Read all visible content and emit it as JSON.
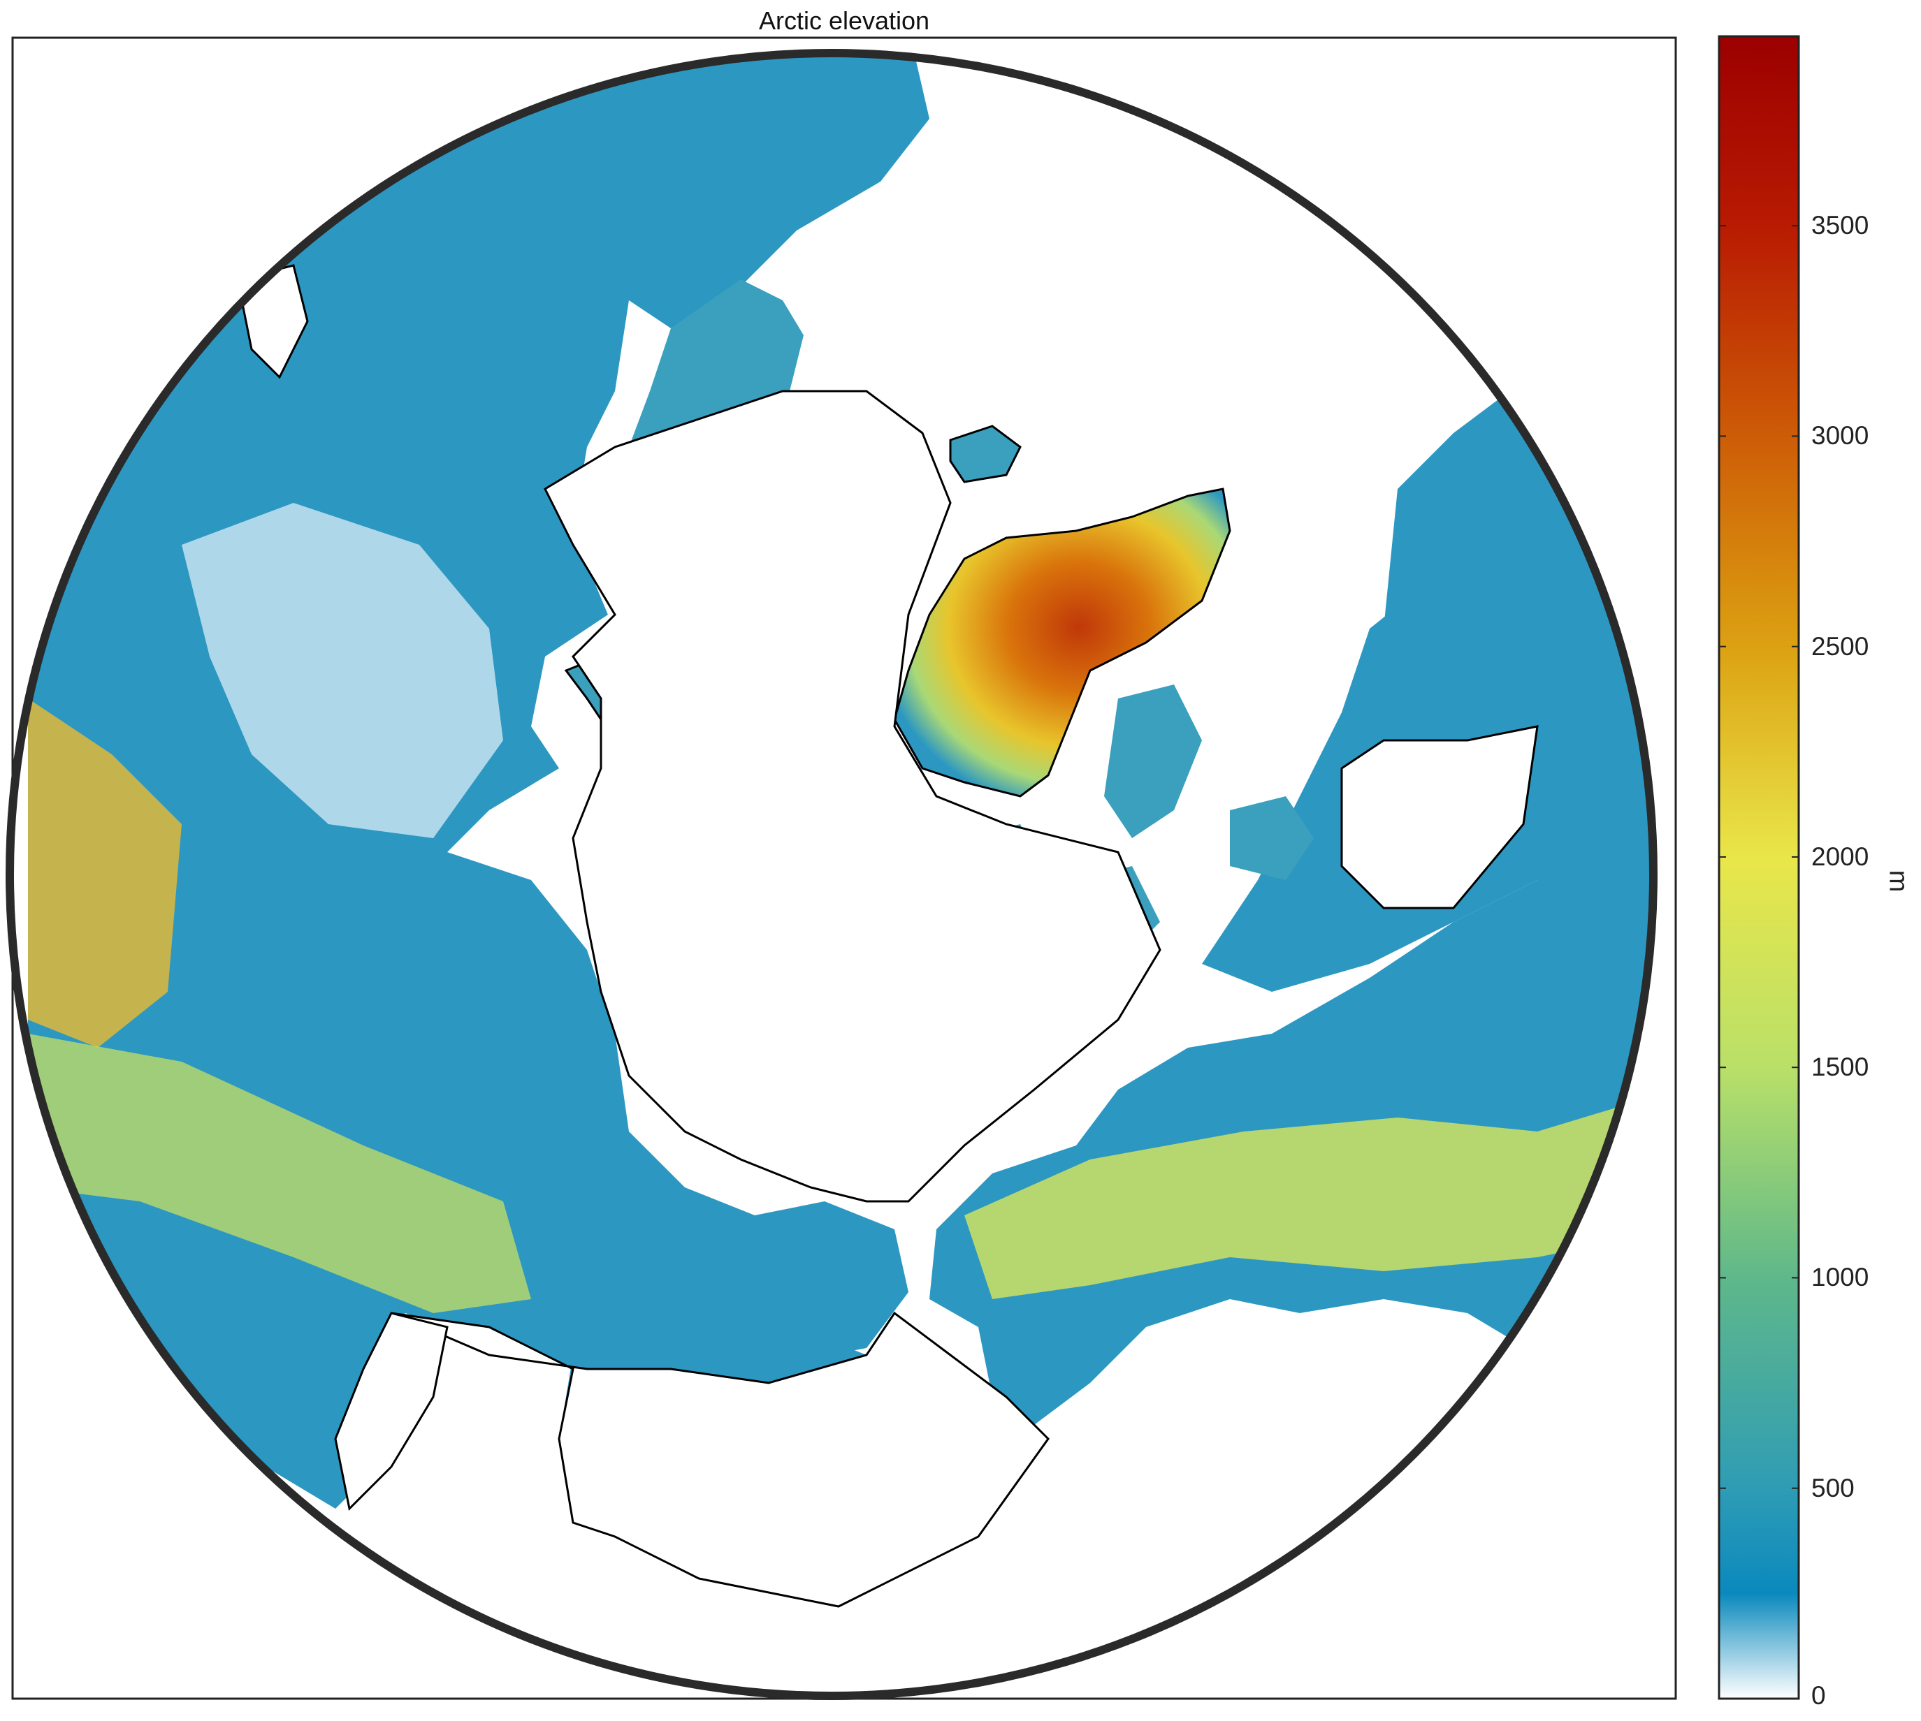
{
  "title": "Arctic elevation",
  "colorbar": {
    "unit": "m",
    "min": 0,
    "max": 3950,
    "ticks": [
      {
        "value": 0,
        "label": "0"
      },
      {
        "value": 500,
        "label": "500"
      },
      {
        "value": 1000,
        "label": "1000"
      },
      {
        "value": 1500,
        "label": "1500"
      },
      {
        "value": 2000,
        "label": "2000"
      },
      {
        "value": 2500,
        "label": "2500"
      },
      {
        "value": 3000,
        "label": "3000"
      },
      {
        "value": 3500,
        "label": "3500"
      }
    ],
    "colormap": [
      {
        "value": 0,
        "color": "#ffffff"
      },
      {
        "value": 250,
        "color": "#0a89bd"
      },
      {
        "value": 500,
        "color": "#2f9cb5"
      },
      {
        "value": 1000,
        "color": "#5fb88a"
      },
      {
        "value": 1500,
        "color": "#b9e068"
      },
      {
        "value": 2000,
        "color": "#e9e64a"
      },
      {
        "value": 2500,
        "color": "#dca112"
      },
      {
        "value": 3000,
        "color": "#cd5c07"
      },
      {
        "value": 3500,
        "color": "#b81a02"
      },
      {
        "value": 3950,
        "color": "#9c0000"
      }
    ]
  },
  "colors": {
    "ocean": "#ffffff",
    "coastline": "#000000",
    "map_border": "#232323",
    "low_land": "#2c98c2",
    "mid_land": "#e8e24a",
    "high_land": "#cd5c07"
  }
}
